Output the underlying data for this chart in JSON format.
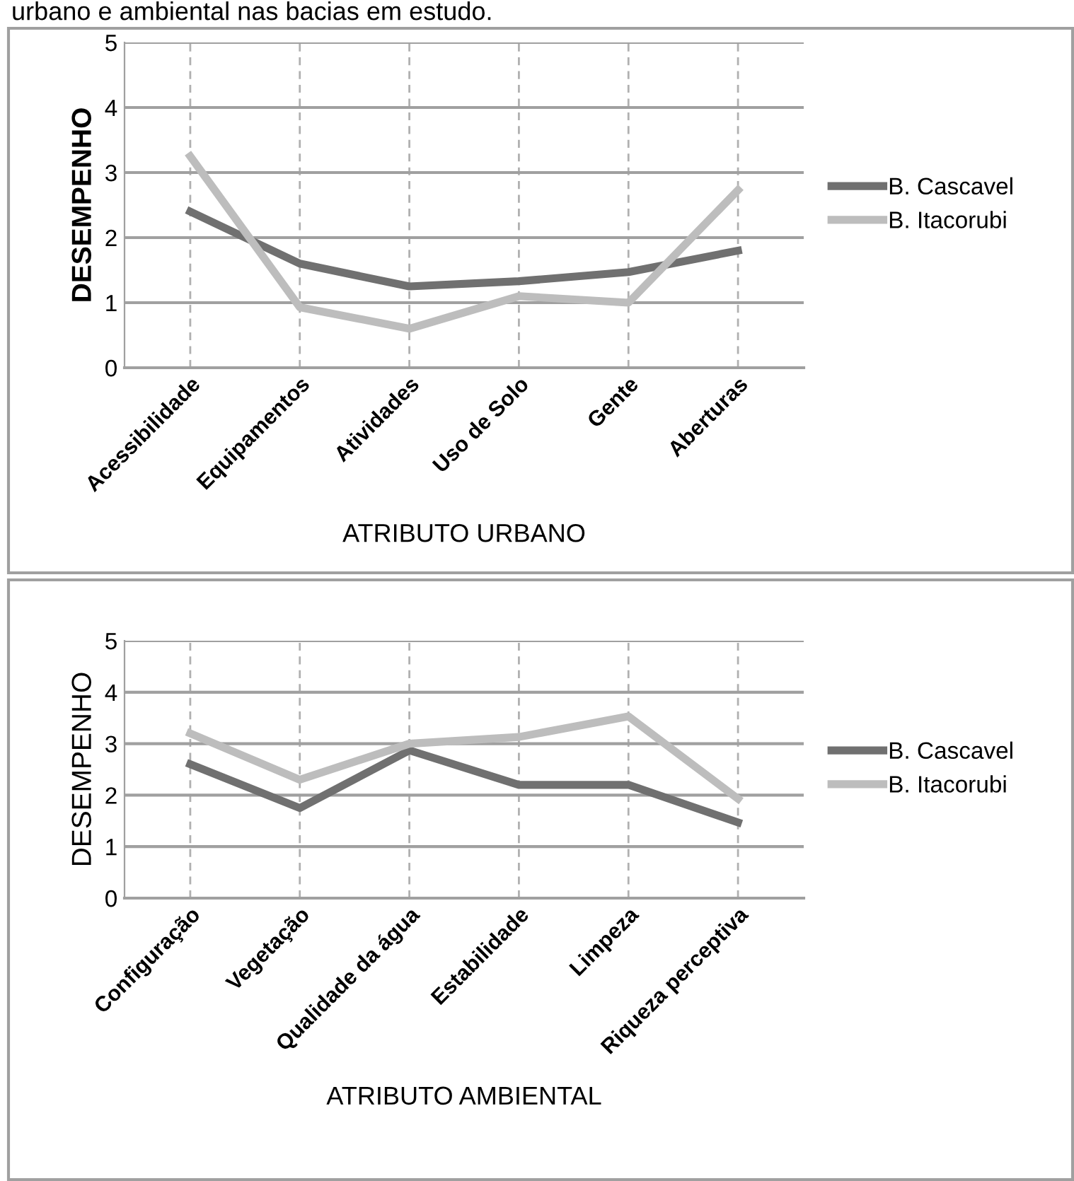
{
  "chart_data": [
    {
      "type": "line",
      "title": "urbano e ambiental nas bacias em estudo.",
      "xlabel": "ATRIBUTO URBANO",
      "ylabel": "DESEMPENHO",
      "categories": [
        "Acessibilidade",
        "Equipamentos",
        "Atividades",
        "Uso de Solo",
        "Gente",
        "Aberturas"
      ],
      "series": [
        {
          "name": "B. Cascavel",
          "color": "#707070",
          "values": [
            2.4,
            1.6,
            1.25,
            1.33,
            1.47,
            1.8
          ]
        },
        {
          "name": "B. Itacorubi",
          "color": "#bdbdbd",
          "values": [
            3.25,
            0.93,
            0.6,
            1.1,
            1.0,
            2.73
          ]
        }
      ],
      "ylim": [
        0,
        5
      ],
      "yticks": [
        0,
        1,
        2,
        3,
        4,
        5
      ],
      "grid": true,
      "legend": "right",
      "marker": "none",
      "line_style": "solid"
    },
    {
      "type": "line",
      "xlabel": "ATRIBUTO AMBIENTAL",
      "ylabel": "DESEMPENHO",
      "categories": [
        "Configuração",
        "Vegetação",
        "Qualidade da água",
        "Estabilidade",
        "Limpeza",
        "Riqueza perceptiva"
      ],
      "series": [
        {
          "name": "B. Cascavel",
          "color": "#707070",
          "values": [
            2.6,
            1.75,
            2.87,
            2.2,
            2.2,
            1.47
          ]
        },
        {
          "name": "B. Itacorubi",
          "color": "#bdbdbd",
          "values": [
            3.2,
            2.3,
            3.0,
            3.13,
            3.53,
            1.93
          ]
        }
      ],
      "ylim": [
        0,
        5
      ],
      "yticks": [
        0,
        1,
        2,
        3,
        4,
        5
      ],
      "grid": true,
      "legend": "right",
      "marker": "none",
      "line_style": "solid"
    }
  ]
}
